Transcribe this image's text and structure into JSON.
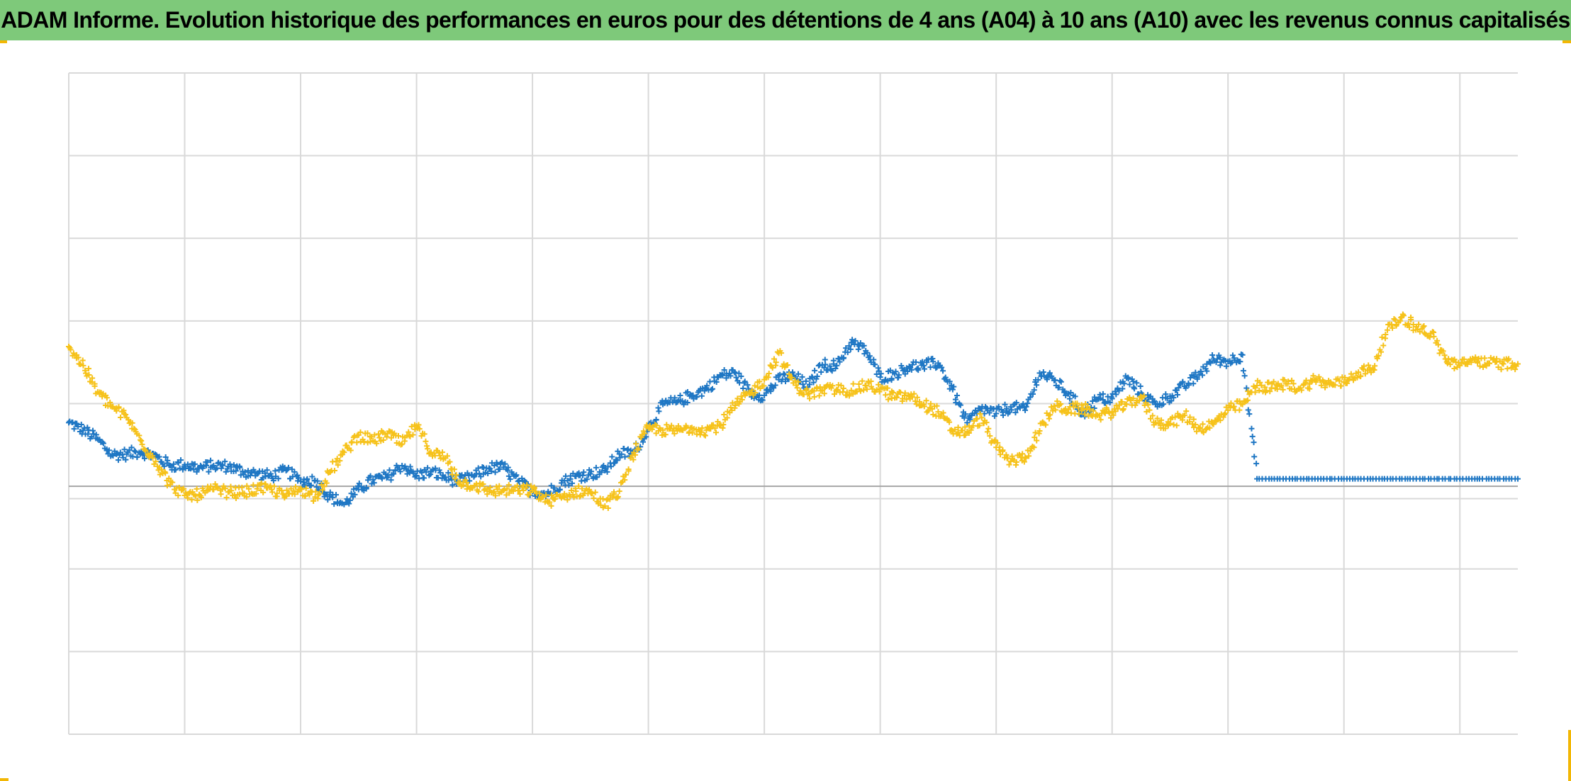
{
  "title": "ADAM Informe. Evolution historique des performances en euros pour des détentions de 4 ans (A04) à 10 ans (A10) avec les revenus connus capitalisés",
  "colors": {
    "header_bg": "#7ec97a",
    "blue": "#1f77c4",
    "yellow": "#f6c21a",
    "grid": "#d9d9d9",
    "zero_line": "#a6a6a6",
    "corner": "#f2b705"
  },
  "chart_data": {
    "type": "scatter",
    "title": "ADAM Informe. Evolution historique des performances en euros pour des détentions de 4 ans (A04) à 10 ans (A10) avec les revenus connus capitalisés",
    "xlabel": "",
    "ylabel": "",
    "x_range": [
      0,
      100
    ],
    "y_range": [
      -30,
      50
    ],
    "x_gridlines": 12,
    "y_gridlines": [
      40,
      30,
      20,
      10,
      0,
      -1.5,
      -10,
      -20
    ],
    "grid": true,
    "legend": "none",
    "axis_tick_labels": "none",
    "marker": "plus",
    "series": [
      {
        "color": "#1f77c4",
        "points": [
          [
            0,
            7.7
          ],
          [
            1,
            6.8
          ],
          [
            2,
            5.7
          ],
          [
            3,
            3.8
          ],
          [
            4,
            3.9
          ],
          [
            5,
            4.2
          ],
          [
            6,
            3.6
          ],
          [
            7,
            2.5
          ],
          [
            8,
            2.6
          ],
          [
            9,
            2.2
          ],
          [
            10,
            2.5
          ],
          [
            11,
            2.4
          ],
          [
            12,
            1.8
          ],
          [
            13,
            1.5
          ],
          [
            14,
            1.2
          ],
          [
            15,
            1.9
          ],
          [
            16,
            0.6
          ],
          [
            17,
            0.7
          ],
          [
            18,
            -1.2
          ],
          [
            19,
            -2.2
          ],
          [
            20,
            -0.4
          ],
          [
            21,
            0.8
          ],
          [
            22,
            1.1
          ],
          [
            23,
            2.5
          ],
          [
            24,
            1.3
          ],
          [
            25,
            1.8
          ],
          [
            26,
            1.1
          ],
          [
            27,
            0.6
          ],
          [
            28,
            1.3
          ],
          [
            29,
            2.2
          ],
          [
            30,
            2.3
          ],
          [
            31,
            0.6
          ],
          [
            32,
            -0.6
          ],
          [
            33,
            -0.9
          ],
          [
            34,
            0.4
          ],
          [
            35,
            1.2
          ],
          [
            36,
            1.5
          ],
          [
            37,
            1.9
          ],
          [
            38,
            3.9
          ],
          [
            39,
            4.1
          ],
          [
            40,
            7.0
          ],
          [
            41,
            9.9
          ],
          [
            42,
            10.2
          ],
          [
            43,
            11.0
          ],
          [
            44,
            11.8
          ],
          [
            45,
            13.4
          ],
          [
            46,
            13.7
          ],
          [
            47,
            11.3
          ],
          [
            48,
            11.0
          ],
          [
            49,
            12.9
          ],
          [
            50,
            13.4
          ],
          [
            51,
            12.0
          ],
          [
            52,
            14.7
          ],
          [
            53,
            14.6
          ],
          [
            54,
            17.4
          ],
          [
            55,
            16.4
          ],
          [
            56,
            13.2
          ],
          [
            57,
            13.6
          ],
          [
            58,
            14.5
          ],
          [
            59,
            14.6
          ],
          [
            60,
            14.9
          ],
          [
            61,
            11.7
          ],
          [
            62,
            7.7
          ],
          [
            63,
            9.4
          ],
          [
            64,
            8.8
          ],
          [
            65,
            9.6
          ],
          [
            66,
            9.2
          ],
          [
            67,
            13.7
          ],
          [
            68,
            12.8
          ],
          [
            69,
            11.2
          ],
          [
            70,
            8.8
          ],
          [
            71,
            10.5
          ],
          [
            72,
            10.6
          ],
          [
            73,
            13.1
          ],
          [
            74,
            11.3
          ],
          [
            75,
            9.9
          ],
          [
            76,
            10.9
          ],
          [
            77,
            12.1
          ],
          [
            78,
            13.5
          ],
          [
            79,
            15.4
          ],
          [
            80,
            15.1
          ],
          [
            81,
            15.9
          ],
          [
            82,
            0.9
          ],
          [
            84,
            0.9
          ],
          [
            86,
            0.9
          ],
          [
            88,
            0.9
          ],
          [
            90,
            0.9
          ],
          [
            92,
            0.9
          ],
          [
            94,
            0.9
          ],
          [
            96,
            0.9
          ],
          [
            98,
            0.9
          ],
          [
            100,
            0.9
          ]
        ]
      },
      {
        "color": "#f6c21a",
        "points": [
          [
            0,
            16.9
          ],
          [
            1,
            14.6
          ],
          [
            2,
            11.4
          ],
          [
            3,
            9.6
          ],
          [
            4,
            8.3
          ],
          [
            5,
            5.5
          ],
          [
            6,
            3.0
          ],
          [
            7,
            0.2
          ],
          [
            8,
            -1.1
          ],
          [
            9,
            -1.0
          ],
          [
            10,
            -0.4
          ],
          [
            11,
            -0.7
          ],
          [
            12,
            -0.8
          ],
          [
            13,
            -0.3
          ],
          [
            14,
            -0.4
          ],
          [
            15,
            -1.2
          ],
          [
            16,
            -0.3
          ],
          [
            17,
            -1.3
          ],
          [
            18,
            1.7
          ],
          [
            19,
            4.1
          ],
          [
            20,
            6.2
          ],
          [
            21,
            5.5
          ],
          [
            22,
            6.4
          ],
          [
            23,
            5.1
          ],
          [
            24,
            7.3
          ],
          [
            25,
            4.1
          ],
          [
            26,
            3.4
          ],
          [
            27,
            0.5
          ],
          [
            28,
            0.1
          ],
          [
            29,
            -0.6
          ],
          [
            30,
            -0.5
          ],
          [
            31,
            -0.5
          ],
          [
            32,
            -0.5
          ],
          [
            33,
            -1.8
          ],
          [
            34,
            -1.4
          ],
          [
            35,
            -0.6
          ],
          [
            36,
            -0.7
          ],
          [
            37,
            -2.4
          ],
          [
            38,
            -0.6
          ],
          [
            39,
            4.1
          ],
          [
            40,
            7.0
          ],
          [
            41,
            6.8
          ],
          [
            42,
            6.7
          ],
          [
            43,
            7.1
          ],
          [
            44,
            6.8
          ],
          [
            45,
            7.4
          ],
          [
            46,
            9.8
          ],
          [
            47,
            11.2
          ],
          [
            48,
            12.9
          ],
          [
            49,
            16.1
          ],
          [
            50,
            12.5
          ],
          [
            51,
            11.1
          ],
          [
            52,
            11.6
          ],
          [
            53,
            11.7
          ],
          [
            54,
            11.6
          ],
          [
            55,
            12.2
          ],
          [
            56,
            11.8
          ],
          [
            57,
            10.7
          ],
          [
            58,
            10.9
          ],
          [
            59,
            9.9
          ],
          [
            60,
            9.0
          ],
          [
            61,
            6.7
          ],
          [
            62,
            6.6
          ],
          [
            63,
            8.3
          ],
          [
            64,
            4.7
          ],
          [
            65,
            3.0
          ],
          [
            66,
            3.5
          ],
          [
            67,
            6.7
          ],
          [
            68,
            9.7
          ],
          [
            69,
            9.3
          ],
          [
            70,
            9.4
          ],
          [
            71,
            8.6
          ],
          [
            72,
            9.0
          ],
          [
            73,
            9.9
          ],
          [
            74,
            10.8
          ],
          [
            75,
            7.7
          ],
          [
            76,
            7.6
          ],
          [
            77,
            8.6
          ],
          [
            78,
            7.0
          ],
          [
            79,
            7.5
          ],
          [
            80,
            9.2
          ],
          [
            81,
            9.9
          ],
          [
            82,
            12.2
          ],
          [
            83,
            11.9
          ],
          [
            84,
            12.4
          ],
          [
            85,
            11.9
          ],
          [
            86,
            12.9
          ],
          [
            87,
            12.3
          ],
          [
            88,
            12.6
          ],
          [
            89,
            13.8
          ],
          [
            90,
            14.2
          ],
          [
            91,
            18.9
          ],
          [
            92,
            20.5
          ],
          [
            93,
            19.3
          ],
          [
            94,
            18.5
          ],
          [
            95,
            15.4
          ],
          [
            96,
            14.6
          ],
          [
            97,
            15.3
          ],
          [
            98,
            14.9
          ],
          [
            99,
            14.8
          ],
          [
            100,
            14.8
          ]
        ]
      }
    ]
  }
}
